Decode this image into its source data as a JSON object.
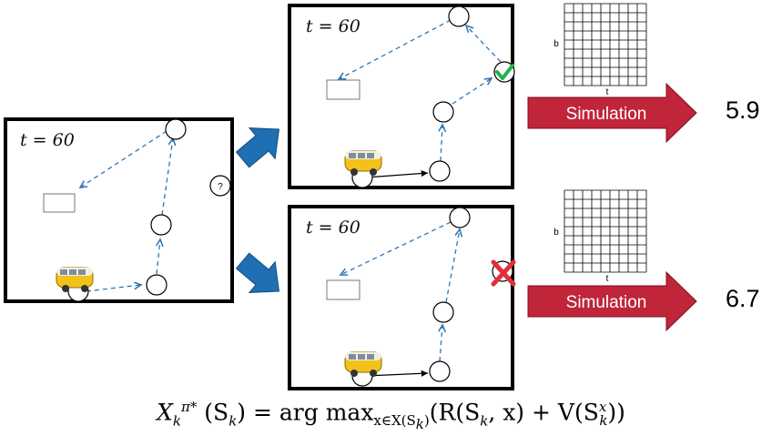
{
  "panels": {
    "left": {
      "time_label": "t = 60",
      "unknown_marker": "?"
    },
    "top": {
      "time_label": "t = 60"
    },
    "bottom": {
      "time_label": "t = 60"
    }
  },
  "simulations": [
    {
      "label": "Simulation",
      "result": "5.9",
      "grid_y_label": "b",
      "grid_x_label": "t",
      "outcome": "accept-check"
    },
    {
      "label": "Simulation",
      "result": "6.7",
      "grid_y_label": "b",
      "grid_x_label": "t",
      "outcome": "reject-cross"
    }
  ],
  "formula": {
    "lhs": "X",
    "lhs_sub": "k",
    "lhs_sup": "π*",
    "arg": "(S",
    "arg_sub": "k",
    "arg_close": ")",
    "equals": "=",
    "argmax": "arg max",
    "argmax_sub": "x∈X(S",
    "argmax_sub_k": "k",
    "argmax_sub_close": ")",
    "body_open": "(R(S",
    "body_sub1": "k",
    "body_mid": ", x) + V(S",
    "body_sub2": "k",
    "body_sup2": "x",
    "body_close": "))"
  },
  "colors": {
    "route_dashed": "#2e75b6",
    "arrow_blue": "#1f6fb2",
    "sim_arrow": "#c0253a",
    "check": "#22b14c",
    "cross": "#e0303a"
  },
  "icons": [
    "van-icon",
    "check-icon",
    "cross-icon",
    "question-icon",
    "depot-box-icon"
  ]
}
